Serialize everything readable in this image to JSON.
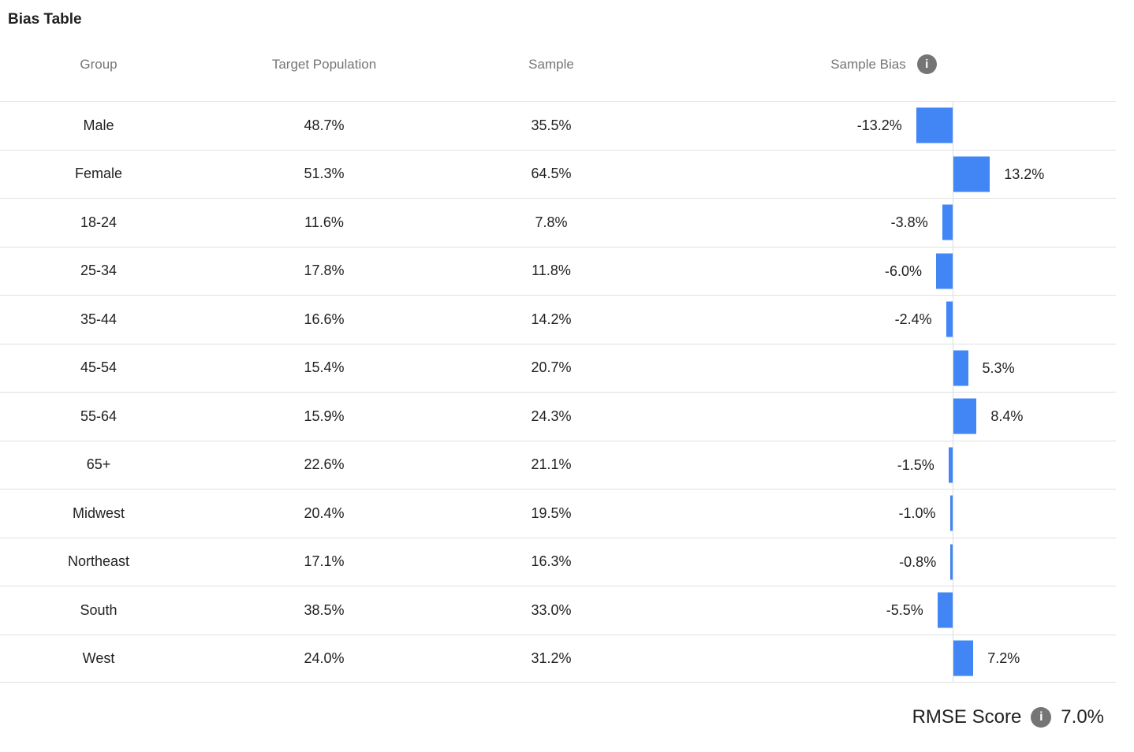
{
  "title": "Bias Table",
  "icons": {
    "info": "i"
  },
  "table": {
    "columns": [
      "Group",
      "Target Population",
      "Sample",
      "Sample Bias"
    ],
    "rows": [
      {
        "group": "Male",
        "target_population": "48.7%",
        "sample": "35.5%",
        "sample_bias": "-13.2%"
      },
      {
        "group": "Female",
        "target_population": "51.3%",
        "sample": "64.5%",
        "sample_bias": "13.2%"
      },
      {
        "group": "18-24",
        "target_population": "11.6%",
        "sample": "7.8%",
        "sample_bias": "-3.8%"
      },
      {
        "group": "25-34",
        "target_population": "17.8%",
        "sample": "11.8%",
        "sample_bias": "-6.0%"
      },
      {
        "group": "35-44",
        "target_population": "16.6%",
        "sample": "14.2%",
        "sample_bias": "-2.4%"
      },
      {
        "group": "45-54",
        "target_population": "15.4%",
        "sample": "20.7%",
        "sample_bias": "5.3%"
      },
      {
        "group": "55-64",
        "target_population": "15.9%",
        "sample": "24.3%",
        "sample_bias": "8.4%"
      },
      {
        "group": "65+",
        "target_population": "22.6%",
        "sample": "21.1%",
        "sample_bias": "-1.5%"
      },
      {
        "group": "Midwest",
        "target_population": "20.4%",
        "sample": "19.5%",
        "sample_bias": "-1.0%"
      },
      {
        "group": "Northeast",
        "target_population": "17.1%",
        "sample": "16.3%",
        "sample_bias": "-0.8%"
      },
      {
        "group": "South",
        "target_population": "38.5%",
        "sample": "33.0%",
        "sample_bias": "-5.5%"
      },
      {
        "group": "West",
        "target_population": "24.0%",
        "sample": "31.2%",
        "sample_bias": "7.2%"
      }
    ]
  },
  "footer": {
    "label": "RMSE Score",
    "value": "7.0%"
  },
  "chart_data": {
    "type": "bar",
    "orientation": "horizontal",
    "title": "Bias Table",
    "categories": [
      "Male",
      "Female",
      "18-24",
      "25-34",
      "35-44",
      "45-54",
      "55-64",
      "65+",
      "Midwest",
      "Northeast",
      "South",
      "West"
    ],
    "series": [
      {
        "name": "Target Population",
        "values": [
          48.7,
          51.3,
          11.6,
          17.8,
          16.6,
          15.4,
          15.9,
          22.6,
          20.4,
          17.1,
          38.5,
          24.0
        ]
      },
      {
        "name": "Sample",
        "values": [
          35.5,
          64.5,
          7.8,
          11.8,
          14.2,
          20.7,
          24.3,
          21.1,
          19.5,
          16.3,
          33.0,
          31.2
        ]
      },
      {
        "name": "Sample Bias",
        "values": [
          -13.2,
          13.2,
          -3.8,
          -6.0,
          -2.4,
          5.3,
          8.4,
          -1.5,
          -1.0,
          -0.8,
          -5.5,
          7.2
        ]
      }
    ],
    "bar_color": "#4285f4",
    "zero_axis_line": true,
    "data_labels": "outside-end",
    "grid": false,
    "footer_metric": {
      "label": "RMSE Score",
      "value_pct": 7.0
    }
  }
}
